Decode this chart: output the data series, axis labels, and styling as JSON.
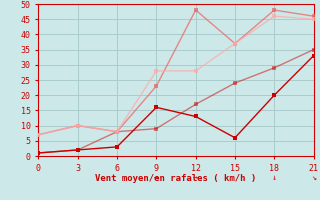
{
  "xlabel": "Vent moyen/en rafales ( km/h )",
  "background_color": "#cce8e8",
  "grid_color": "#aacccc",
  "xlim": [
    0,
    21
  ],
  "ylim": [
    0,
    50
  ],
  "xticks": [
    0,
    3,
    6,
    9,
    12,
    15,
    18,
    21
  ],
  "yticks": [
    0,
    5,
    10,
    15,
    20,
    25,
    30,
    35,
    40,
    45,
    50
  ],
  "series": [
    {
      "x": [
        0,
        3,
        6,
        9,
        12,
        15,
        18,
        21
      ],
      "y": [
        1,
        2,
        3,
        16,
        13,
        6,
        20,
        33
      ],
      "color": "#cc0000",
      "linewidth": 1.0,
      "marker": "s",
      "markersize": 2.5,
      "alpha": 1.0
    },
    {
      "x": [
        0,
        3,
        6,
        9,
        12,
        15,
        18,
        21
      ],
      "y": [
        1,
        2,
        8,
        9,
        17,
        24,
        29,
        35
      ],
      "color": "#cc0000",
      "linewidth": 1.0,
      "marker": "s",
      "markersize": 2.5,
      "alpha": 0.5
    },
    {
      "x": [
        0,
        3,
        6,
        9,
        12,
        15,
        18,
        21
      ],
      "y": [
        7,
        10,
        8,
        23,
        48,
        37,
        48,
        46
      ],
      "color": "#ee6666",
      "linewidth": 1.0,
      "marker": "s",
      "markersize": 2.5,
      "alpha": 0.75
    },
    {
      "x": [
        0,
        3,
        6,
        9,
        12,
        15,
        18,
        21
      ],
      "y": [
        7,
        10,
        8,
        28,
        28,
        37,
        46,
        45
      ],
      "color": "#ffaaaa",
      "linewidth": 1.0,
      "marker": "s",
      "markersize": 2.5,
      "alpha": 0.75
    }
  ],
  "wind_arrows": [
    {
      "x": 9,
      "symbol": "→"
    },
    {
      "x": 12,
      "symbol": "→"
    },
    {
      "x": 18,
      "symbol": "↓"
    },
    {
      "x": 21,
      "symbol": "↘"
    }
  ],
  "axis_color": "#cc0000",
  "tick_fontsize": 6,
  "label_fontsize": 6.5
}
